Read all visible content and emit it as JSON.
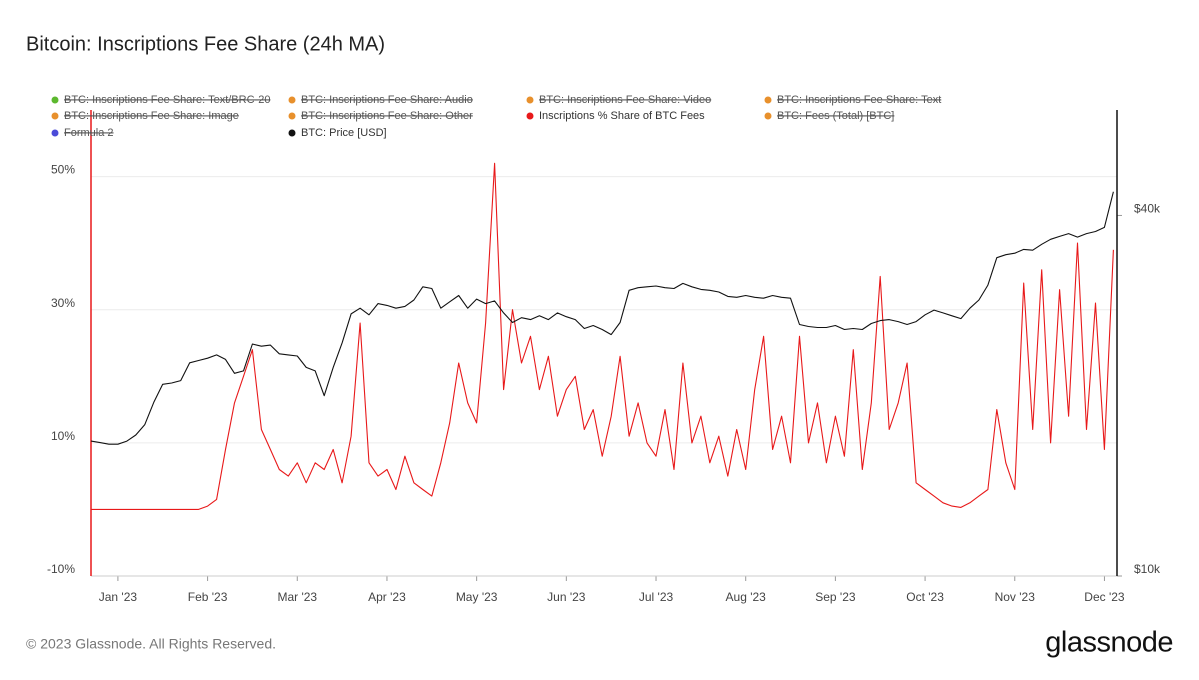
{
  "chart_data": {
    "type": "line",
    "title": "Bitcoin: Inscriptions Fee Share (24h MA)",
    "footer": "© 2023 Glassnode. All Rights Reserved.",
    "brand": "glassnode",
    "x": [
      0.7,
      0.8,
      0.9,
      1.0,
      1.1,
      1.2,
      1.3,
      1.4,
      1.5,
      1.6,
      1.7,
      1.8,
      1.9,
      2.0,
      2.1,
      2.2,
      2.3,
      2.4,
      2.5,
      2.6,
      2.7,
      2.8,
      2.9,
      3.0,
      3.1,
      3.2,
      3.3,
      3.4,
      3.5,
      3.6,
      3.7,
      3.8,
      3.9,
      4.0,
      4.1,
      4.2,
      4.3,
      4.4,
      4.5,
      4.6,
      4.7,
      4.8,
      4.9,
      5.0,
      5.1,
      5.2,
      5.3,
      5.4,
      5.5,
      5.6,
      5.7,
      5.8,
      5.9,
      6.0,
      6.1,
      6.2,
      6.3,
      6.4,
      6.5,
      6.6,
      6.7,
      6.8,
      6.9,
      7.0,
      7.1,
      7.2,
      7.3,
      7.4,
      7.5,
      7.6,
      7.7,
      7.8,
      7.9,
      8.0,
      8.1,
      8.2,
      8.3,
      8.4,
      8.5,
      8.6,
      8.7,
      8.8,
      8.9,
      9.0,
      9.1,
      9.2,
      9.3,
      9.4,
      9.5,
      9.6,
      9.7,
      9.8,
      9.9,
      10.0,
      10.1,
      10.2,
      10.3,
      10.4,
      10.5,
      10.6,
      10.7,
      10.8,
      10.9,
      11.0,
      11.1,
      11.2,
      11.3,
      11.4,
      11.5,
      11.6,
      11.7,
      11.8,
      11.9,
      12.0,
      12.1
    ],
    "xlim": [
      0.7,
      12.14
    ],
    "xticks": [
      {
        "value": 1,
        "label": "Jan '23"
      },
      {
        "value": 2,
        "label": "Feb '23"
      },
      {
        "value": 3,
        "label": "Mar '23"
      },
      {
        "value": 4,
        "label": "Apr '23"
      },
      {
        "value": 5,
        "label": "May '23"
      },
      {
        "value": 6,
        "label": "Jun '23"
      },
      {
        "value": 7,
        "label": "Jul '23"
      },
      {
        "value": 8,
        "label": "Aug '23"
      },
      {
        "value": 9,
        "label": "Sep '23"
      },
      {
        "value": 10,
        "label": "Oct '23"
      },
      {
        "value": 11,
        "label": "Nov '23"
      },
      {
        "value": 12,
        "label": "Dec '23"
      }
    ],
    "ylim": [
      -10,
      60
    ],
    "yticks": [
      {
        "value": -10,
        "label": "-10%"
      },
      {
        "value": 10,
        "label": "10%"
      },
      {
        "value": 30,
        "label": "30%"
      },
      {
        "value": 50,
        "label": "50%"
      }
    ],
    "y2lim": [
      10000,
      60000
    ],
    "y2ticks": [
      {
        "value": 10000,
        "label": "$10k"
      },
      {
        "value": 40000,
        "label": "$40k"
      }
    ],
    "y2log": true,
    "grid": true,
    "series": [
      {
        "name": "BTC: Inscriptions Fee Share: Text/BRC-20",
        "color": "#5cb82e",
        "visible": false
      },
      {
        "name": "BTC: Inscriptions Fee Share: Audio",
        "color": "#e8902c",
        "visible": false
      },
      {
        "name": "BTC: Inscriptions Fee Share: Video",
        "color": "#e8902c",
        "visible": false
      },
      {
        "name": "BTC: Inscriptions Fee Share: Text",
        "color": "#e8902c",
        "visible": false
      },
      {
        "name": "BTC: Inscriptions Fee Share: Image",
        "color": "#e8902c",
        "visible": false
      },
      {
        "name": "BTC: Inscriptions Fee Share: Other",
        "color": "#e8902c",
        "visible": false
      },
      {
        "name": "Inscriptions % Share of BTC Fees",
        "color": "#e8191a",
        "visible": true,
        "axis": "y",
        "values": [
          0,
          0,
          0,
          0,
          0,
          0,
          0,
          0,
          0,
          0,
          0,
          0,
          0,
          0.5,
          1.5,
          9,
          16,
          20,
          24,
          12,
          9,
          6,
          5,
          7,
          4,
          7,
          6,
          9,
          4,
          11,
          28,
          7,
          5,
          6,
          3,
          8,
          4,
          3,
          2,
          7,
          13,
          22,
          16,
          13,
          28,
          52,
          18,
          30,
          22,
          26,
          18,
          23,
          14,
          18,
          20,
          12,
          15,
          8,
          14,
          23,
          11,
          16,
          10,
          8,
          15,
          6,
          22,
          10,
          14,
          7,
          11,
          5,
          12,
          6,
          18,
          26,
          9,
          14,
          7,
          26,
          10,
          16,
          7,
          14,
          8,
          24,
          6,
          16,
          35,
          12,
          16,
          22,
          4,
          3,
          2,
          1,
          0.5,
          0.3,
          1,
          2,
          3,
          15,
          7,
          3,
          34,
          12,
          36,
          10,
          33,
          14,
          40,
          12,
          31,
          9,
          39
        ]
      },
      {
        "name": "BTC: Fees (Total) [BTC]",
        "color": "#e8902c",
        "visible": false
      },
      {
        "name": "Formula 2",
        "color": "#4b4bd8",
        "visible": false
      },
      {
        "name": "BTC: Price [USD]",
        "color": "#111111",
        "visible": true,
        "axis": "y2",
        "values": [
          16800,
          16700,
          16600,
          16600,
          16800,
          17200,
          17900,
          19500,
          20900,
          21000,
          21200,
          22700,
          22900,
          23100,
          23400,
          23000,
          21800,
          22000,
          24400,
          24200,
          24300,
          23500,
          23400,
          23300,
          22300,
          22000,
          20000,
          22300,
          24500,
          27400,
          28000,
          27300,
          28500,
          28300,
          28000,
          28200,
          28900,
          30400,
          30200,
          28000,
          28700,
          29400,
          28000,
          29000,
          28500,
          28800,
          27500,
          26500,
          27000,
          26800,
          27200,
          26800,
          27500,
          27100,
          26800,
          25900,
          26200,
          25800,
          25300,
          26500,
          30000,
          30300,
          30400,
          30500,
          30300,
          30200,
          30800,
          30400,
          30100,
          30000,
          29800,
          29300,
          29200,
          29400,
          29200,
          29100,
          29400,
          29200,
          29100,
          26300,
          26100,
          26000,
          26000,
          26200,
          25800,
          25900,
          25800,
          26400,
          26700,
          26800,
          26600,
          26300,
          26600,
          27300,
          27800,
          27500,
          27200,
          26900,
          28000,
          28900,
          30600,
          34000,
          34400,
          34600,
          35100,
          35000,
          35800,
          36500,
          36900,
          37300,
          36800,
          37300,
          37600,
          38200,
          43800
        ]
      }
    ]
  }
}
